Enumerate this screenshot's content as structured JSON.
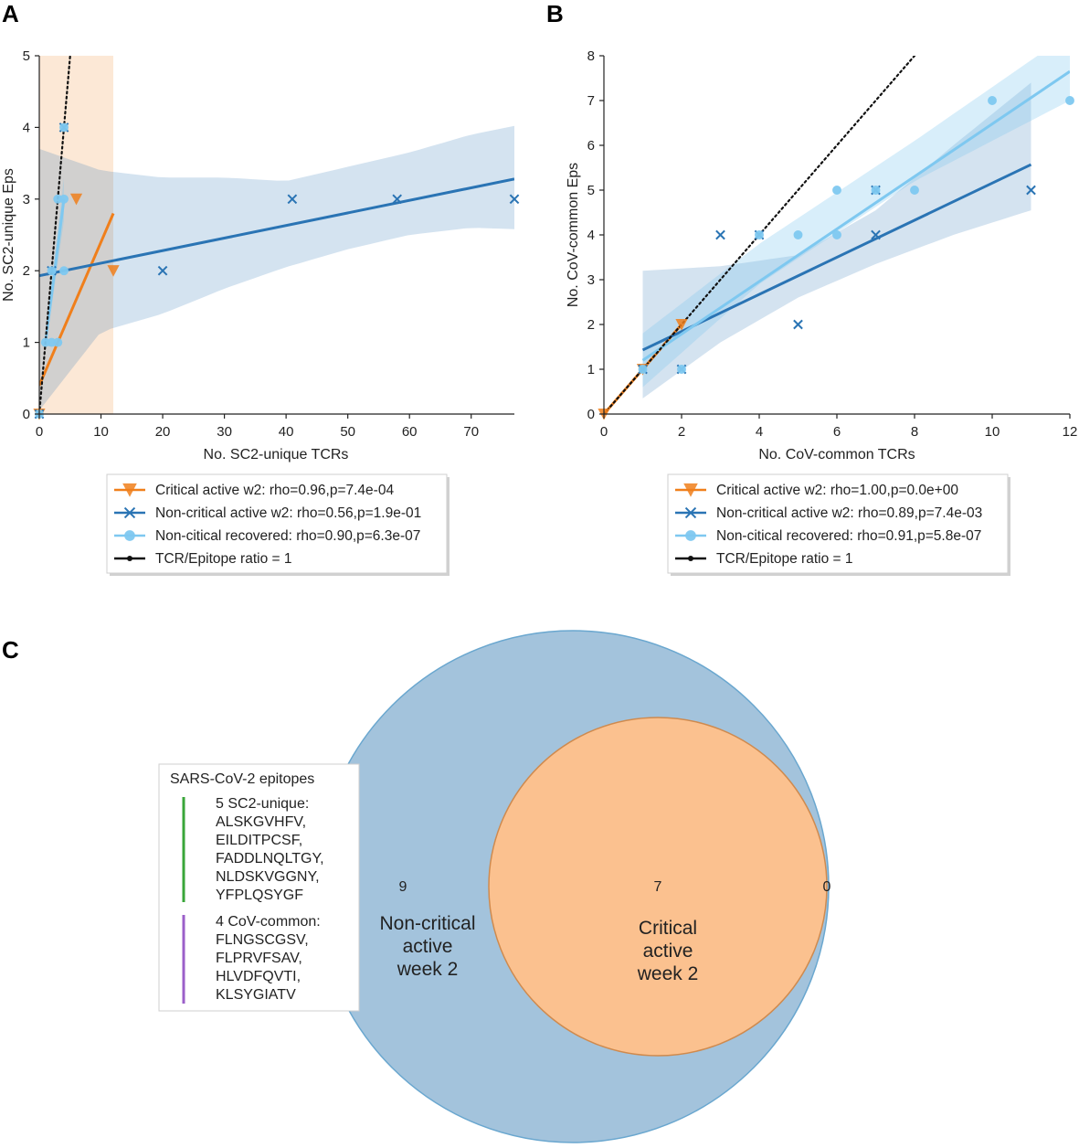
{
  "panels": {
    "a": "A",
    "b": "B",
    "c": "C"
  },
  "colors": {
    "critical": "#f07f1b",
    "noncritical": "#2a74b4",
    "recovered": "#7ec8f0",
    "ratio": "#111111",
    "venn_big": "#a3c3dc",
    "venn_big_edge": "#6aa7cf",
    "venn_small": "#fbc18f",
    "venn_small_edge": "#cf8a4e",
    "green": "#3aa63a",
    "purple": "#9b5fc9"
  },
  "chart_data": [
    {
      "id": "A",
      "type": "scatter",
      "xlabel": "No. SC2-unique TCRs",
      "ylabel": "No. SC2-unique Eps",
      "xlim": [
        0,
        77
      ],
      "ylim": [
        0,
        5
      ],
      "xticks": [
        0,
        10,
        20,
        30,
        40,
        50,
        60,
        70
      ],
      "yticks": [
        0,
        1,
        2,
        3,
        4,
        5
      ],
      "series": [
        {
          "key": "critical",
          "name": "Critical active w2: rho=0.96,p=7.4e-04",
          "marker": "triangle",
          "points": [
            [
              0,
              0
            ],
            [
              6,
              3
            ],
            [
              12,
              2
            ]
          ],
          "fit": [
            [
              0,
              0.4
            ],
            [
              12,
              2.8
            ]
          ],
          "band": {
            "x": [
              0,
              12
            ],
            "lower": [
              0,
              0
            ],
            "upper": [
              5,
              5
            ]
          }
        },
        {
          "key": "noncritical",
          "name": "Non-critical active w2: rho=0.56,p=1.9e-01",
          "marker": "x",
          "points": [
            [
              0,
              0
            ],
            [
              2,
              2
            ],
            [
              4,
              4
            ],
            [
              20,
              2
            ],
            [
              41,
              3
            ],
            [
              58,
              3
            ],
            [
              77,
              3
            ]
          ],
          "fit": [
            [
              0,
              1.93
            ],
            [
              77,
              3.28
            ]
          ],
          "band": {
            "x": [
              0,
              10,
              20,
              30,
              40,
              50,
              60,
              70,
              77
            ],
            "lower": [
              0.05,
              1.15,
              1.4,
              1.75,
              2.05,
              2.3,
              2.5,
              2.6,
              2.58
            ],
            "upper": [
              3.7,
              3.4,
              3.3,
              3.3,
              3.25,
              3.45,
              3.65,
              3.9,
              4.02
            ]
          }
        },
        {
          "key": "recovered",
          "name": "Non-citical recovered: rho=0.90,p=6.3e-07",
          "marker": "circle",
          "points": [
            [
              0,
              0
            ],
            [
              1,
              1
            ],
            [
              2,
              1
            ],
            [
              3,
              1
            ],
            [
              2,
              2
            ],
            [
              4,
              2
            ],
            [
              3,
              3
            ],
            [
              4,
              3
            ],
            [
              4,
              4
            ]
          ],
          "fit": [
            [
              1,
              1.0
            ],
            [
              4,
              3.0
            ]
          ],
          "band": {
            "x": [
              1,
              4
            ],
            "lower": [
              0.9,
              2.7
            ],
            "upper": [
              1.1,
              3.3
            ]
          }
        },
        {
          "key": "ratio",
          "name": "TCR/Epitope ratio = 1",
          "marker": "dot",
          "points": [],
          "fit": [
            [
              0,
              0
            ],
            [
              5,
              5
            ]
          ]
        }
      ]
    },
    {
      "id": "B",
      "type": "scatter",
      "xlabel": "No. CoV-common TCRs",
      "ylabel": "No. CoV-common Eps",
      "xlim": [
        0,
        12
      ],
      "ylim": [
        0,
        8
      ],
      "xticks": [
        0,
        2,
        4,
        6,
        8,
        10,
        12
      ],
      "yticks": [
        0,
        1,
        2,
        3,
        4,
        5,
        6,
        7,
        8
      ],
      "series": [
        {
          "key": "critical",
          "name": "Critical active w2: rho=1.00,p=0.0e+00",
          "marker": "triangle",
          "points": [
            [
              0,
              0
            ],
            [
              1,
              1
            ],
            [
              2,
              2
            ]
          ],
          "fit": [
            [
              0,
              0
            ],
            [
              2,
              2
            ]
          ]
        },
        {
          "key": "noncritical",
          "name": "Non-critical active w2: rho=0.89,p=7.4e-03",
          "marker": "x",
          "points": [
            [
              1,
              1
            ],
            [
              2,
              1
            ],
            [
              3,
              4
            ],
            [
              4,
              4
            ],
            [
              5,
              2
            ],
            [
              7,
              4
            ],
            [
              7,
              5
            ],
            [
              11,
              5
            ]
          ],
          "fit": [
            [
              1,
              1.43
            ],
            [
              11,
              5.57
            ]
          ],
          "band": {
            "x": [
              1,
              3,
              5,
              7,
              9,
              11
            ],
            "lower": [
              0.35,
              1.6,
              2.6,
              3.35,
              4.0,
              4.55
            ],
            "upper": [
              3.2,
              3.3,
              3.55,
              4.55,
              6.0,
              7.4
            ]
          }
        },
        {
          "key": "recovered",
          "name": "Non-citical recovered: rho=0.91,p=5.8e-07",
          "marker": "circle",
          "points": [
            [
              1,
              1
            ],
            [
              2,
              1
            ],
            [
              4,
              4
            ],
            [
              5,
              4
            ],
            [
              6,
              4
            ],
            [
              6,
              5
            ],
            [
              7,
              5
            ],
            [
              8,
              5
            ],
            [
              10,
              7
            ],
            [
              12,
              7
            ]
          ],
          "fit": [
            [
              1,
              1.2
            ],
            [
              12,
              7.65
            ]
          ],
          "band": {
            "x": [
              1,
              4,
              8,
              12
            ],
            "lower": [
              0.6,
              2.9,
              5.2,
              7.0
            ],
            "upper": [
              1.8,
              3.8,
              6.1,
              8.5
            ]
          }
        },
        {
          "key": "ratio",
          "name": "TCR/Epitope ratio = 1",
          "marker": "dot",
          "points": [],
          "fit": [
            [
              0,
              0
            ],
            [
              8,
              8
            ]
          ]
        }
      ]
    },
    {
      "id": "C",
      "type": "venn",
      "sets": [
        {
          "key": "noncritical",
          "label_lines": [
            "Non-critical",
            "active",
            "week 2"
          ],
          "only": "9"
        },
        {
          "key": "critical",
          "label_lines": [
            "Critical",
            "active",
            "week 2"
          ],
          "only": "0"
        }
      ],
      "intersection": "7"
    }
  ],
  "epitopes": {
    "title": "SARS-CoV-2 epitopes",
    "groups": [
      {
        "color_key": "green",
        "lines": [
          "5 SC2-unique:",
          "ALSKGVHFV,",
          "EILDITPCSF,",
          "FADDLNQLTGY,",
          "NLDSKVGGNY,",
          "YFPLQSYGF"
        ]
      },
      {
        "color_key": "purple",
        "lines": [
          "4 CoV-common:",
          "FLNGSCGSV,",
          "FLPRVFSAV,",
          "HLVDFQVTI,",
          "KLSYGIATV"
        ]
      }
    ]
  }
}
